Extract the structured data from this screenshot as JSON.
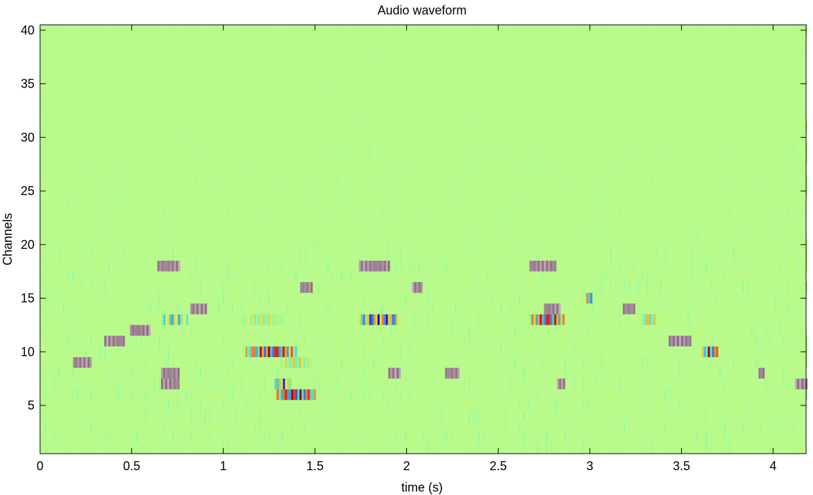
{
  "chart_data": {
    "type": "heatmap",
    "title": "Audio waveform",
    "xlabel": "time (s)",
    "ylabel": "Channels",
    "xlim": [
      0,
      4.18
    ],
    "ylim": [
      0.5,
      40.5
    ],
    "x_ticks": [
      0,
      0.5,
      1,
      1.5,
      2,
      2.5,
      3,
      3.5,
      4
    ],
    "x_tick_labels": [
      "0",
      "0.5",
      "1",
      "1.5",
      "2",
      "2.5",
      "3",
      "3.5",
      "4"
    ],
    "y_ticks": [
      5,
      10,
      15,
      20,
      25,
      30,
      35,
      40
    ],
    "y_tick_labels": [
      "5",
      "10",
      "15",
      "20",
      "25",
      "30",
      "35",
      "40"
    ],
    "channels": 40,
    "grid": false,
    "colormap": "jet",
    "background_color": "#b8fa8c",
    "events": [
      {
        "channel": 6,
        "t_start": 1.28,
        "t_end": 1.5,
        "intensity": 1.0
      },
      {
        "channel": 7,
        "t_start": 1.28,
        "t_end": 1.36,
        "intensity": -0.8
      },
      {
        "channel": 10,
        "t_start": 1.12,
        "t_end": 1.4,
        "intensity": 0.95
      },
      {
        "channel": 9,
        "t_start": 1.3,
        "t_end": 1.48,
        "intensity": 0.5
      },
      {
        "channel": 13,
        "t_start": 1.1,
        "t_end": 1.32,
        "intensity": 0.45
      },
      {
        "channel": 13,
        "t_start": 1.74,
        "t_end": 1.96,
        "intensity": -0.9
      },
      {
        "channel": 13,
        "t_start": 2.67,
        "t_end": 2.86,
        "intensity": 0.95
      },
      {
        "channel": 14,
        "t_start": 2.75,
        "t_end": 2.83,
        "intensity": 0.4
      },
      {
        "channel": 15,
        "t_start": 2.98,
        "t_end": 3.01,
        "intensity": 1.0
      },
      {
        "channel": 10,
        "t_start": 3.61,
        "t_end": 3.7,
        "intensity": 0.95
      },
      {
        "channel": 13,
        "t_start": 3.28,
        "t_end": 3.36,
        "intensity": 0.6
      },
      {
        "channel": 13,
        "t_start": 0.65,
        "t_end": 0.8,
        "intensity": -0.6
      },
      {
        "channel": 14,
        "t_start": 0.82,
        "t_end": 0.9,
        "intensity": 0.4
      },
      {
        "channel": 12,
        "t_start": 0.49,
        "t_end": 0.6,
        "intensity": 0.4
      },
      {
        "channel": 11,
        "t_start": 0.35,
        "t_end": 0.46,
        "intensity": 0.4
      },
      {
        "channel": 9,
        "t_start": 0.18,
        "t_end": 0.28,
        "intensity": 0.35
      },
      {
        "channel": 8,
        "t_start": 0.66,
        "t_end": 0.76,
        "intensity": 0.4
      },
      {
        "channel": 7,
        "t_start": 0.66,
        "t_end": 0.76,
        "intensity": 0.4
      },
      {
        "channel": 16,
        "t_start": 1.42,
        "t_end": 1.48,
        "intensity": 0.35
      },
      {
        "channel": 16,
        "t_start": 2.03,
        "t_end": 2.08,
        "intensity": 0.35
      },
      {
        "channel": 8,
        "t_start": 1.9,
        "t_end": 1.96,
        "intensity": 0.4
      },
      {
        "channel": 8,
        "t_start": 2.21,
        "t_end": 2.28,
        "intensity": 0.4
      },
      {
        "channel": 7,
        "t_start": 2.82,
        "t_end": 2.86,
        "intensity": 0.4
      },
      {
        "channel": 11,
        "t_start": 3.43,
        "t_end": 3.55,
        "intensity": 0.4
      },
      {
        "channel": 14,
        "t_start": 3.18,
        "t_end": 3.24,
        "intensity": 0.35
      },
      {
        "channel": 7,
        "t_start": 4.12,
        "t_end": 4.18,
        "intensity": 0.4
      },
      {
        "channel": 8,
        "t_start": 3.92,
        "t_end": 3.95,
        "intensity": 0.35
      },
      {
        "channel": 18,
        "t_start": 0.64,
        "t_end": 0.76,
        "intensity": 0.35
      },
      {
        "channel": 18,
        "t_start": 1.74,
        "t_end": 1.9,
        "intensity": 0.35
      },
      {
        "channel": 18,
        "t_start": 2.67,
        "t_end": 2.81,
        "intensity": 0.35
      }
    ]
  }
}
